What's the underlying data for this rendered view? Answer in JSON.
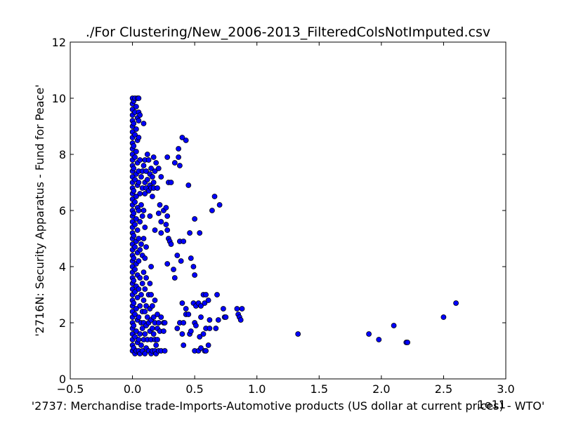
{
  "chart_data": {
    "type": "scatter",
    "title": "./For Clustering/New_2006-2013_FilteredColsNotImputed.csv",
    "xlabel": "'2737: Merchandise trade-Imports-Automotive products (US dollar at current prices) - WTO'",
    "ylabel": "'2716N: Security Apparatus - Fund for Peace'",
    "x_offset_text": "1e11",
    "xlim": [
      -0.5,
      3.0
    ],
    "ylim": [
      0,
      12
    ],
    "x_ticks": [
      -0.5,
      0.0,
      0.5,
      1.0,
      1.5,
      2.0,
      2.5,
      3.0
    ],
    "x_tick_labels": [
      "−0.5",
      "0.0",
      "0.5",
      "1.0",
      "1.5",
      "2.0",
      "2.5",
      "3.0"
    ],
    "y_ticks": [
      0,
      2,
      4,
      6,
      8,
      10,
      12
    ],
    "y_tick_labels": [
      "0",
      "2",
      "4",
      "6",
      "8",
      "10",
      "12"
    ],
    "grid": false,
    "legend": "none",
    "marker_color": "#0000ff",
    "marker_edge_color": "#000000",
    "series": [
      {
        "points": [
          [
            0.0,
            10.0
          ],
          [
            0.0,
            9.8
          ],
          [
            0.0,
            9.6
          ],
          [
            0.0,
            9.4
          ],
          [
            0.0,
            9.2
          ],
          [
            0.0,
            9.0
          ],
          [
            0.0,
            8.8
          ],
          [
            0.0,
            8.6
          ],
          [
            0.0,
            8.4
          ],
          [
            0.0,
            8.2
          ],
          [
            0.0,
            8.0
          ],
          [
            0.0,
            7.8
          ],
          [
            0.0,
            7.6
          ],
          [
            0.0,
            7.4
          ],
          [
            0.0,
            7.2
          ],
          [
            0.0,
            7.0
          ],
          [
            0.0,
            6.8
          ],
          [
            0.0,
            6.6
          ],
          [
            0.0,
            6.4
          ],
          [
            0.0,
            6.2
          ],
          [
            0.0,
            6.0
          ],
          [
            0.0,
            5.8
          ],
          [
            0.0,
            5.6
          ],
          [
            0.0,
            5.4
          ],
          [
            0.0,
            5.2
          ],
          [
            0.0,
            5.0
          ],
          [
            0.0,
            4.8
          ],
          [
            0.0,
            4.6
          ],
          [
            0.0,
            4.4
          ],
          [
            0.0,
            4.2
          ],
          [
            0.0,
            4.0
          ],
          [
            0.0,
            3.8
          ],
          [
            0.0,
            3.6
          ],
          [
            0.0,
            3.4
          ],
          [
            0.0,
            3.2
          ],
          [
            0.0,
            3.0
          ],
          [
            0.0,
            2.8
          ],
          [
            0.0,
            2.6
          ],
          [
            0.0,
            2.4
          ],
          [
            0.0,
            2.2
          ],
          [
            0.0,
            2.0
          ],
          [
            0.0,
            1.8
          ],
          [
            0.0,
            1.6
          ],
          [
            0.0,
            1.4
          ],
          [
            0.0,
            1.2
          ],
          [
            0.0,
            1.0
          ],
          [
            0.01,
            9.9
          ],
          [
            0.01,
            9.1
          ],
          [
            0.01,
            8.3
          ],
          [
            0.01,
            7.5
          ],
          [
            0.01,
            6.7
          ],
          [
            0.01,
            5.9
          ],
          [
            0.01,
            5.1
          ],
          [
            0.01,
            4.3
          ],
          [
            0.01,
            3.5
          ],
          [
            0.01,
            2.7
          ],
          [
            0.01,
            1.9
          ],
          [
            0.01,
            1.1
          ],
          [
            0.02,
            10.0
          ],
          [
            0.02,
            9.5
          ],
          [
            0.02,
            8.7
          ],
          [
            0.02,
            7.9
          ],
          [
            0.02,
            7.1
          ],
          [
            0.02,
            6.3
          ],
          [
            0.02,
            5.5
          ],
          [
            0.02,
            4.7
          ],
          [
            0.02,
            3.9
          ],
          [
            0.02,
            3.1
          ],
          [
            0.02,
            2.3
          ],
          [
            0.02,
            1.5
          ],
          [
            0.02,
            0.9
          ],
          [
            0.03,
            9.7
          ],
          [
            0.03,
            8.9
          ],
          [
            0.03,
            8.1
          ],
          [
            0.03,
            7.3
          ],
          [
            0.03,
            6.5
          ],
          [
            0.03,
            5.7
          ],
          [
            0.03,
            4.9
          ],
          [
            0.03,
            4.1
          ],
          [
            0.03,
            3.3
          ],
          [
            0.03,
            2.5
          ],
          [
            0.03,
            1.7
          ],
          [
            0.03,
            1.0
          ],
          [
            0.04,
            10.0
          ],
          [
            0.04,
            9.3
          ],
          [
            0.04,
            8.5
          ],
          [
            0.04,
            7.7
          ],
          [
            0.04,
            6.9
          ],
          [
            0.04,
            6.1
          ],
          [
            0.04,
            5.3
          ],
          [
            0.04,
            4.5
          ],
          [
            0.04,
            3.7
          ],
          [
            0.04,
            2.9
          ],
          [
            0.04,
            2.1
          ],
          [
            0.04,
            1.3
          ],
          [
            0.05,
            10.0
          ],
          [
            0.05,
            9.5
          ],
          [
            0.05,
            9.2
          ],
          [
            0.05,
            8.6
          ],
          [
            0.05,
            7.4
          ],
          [
            0.05,
            7.0
          ],
          [
            0.05,
            6.0
          ],
          [
            0.05,
            5.0
          ],
          [
            0.05,
            4.2
          ],
          [
            0.05,
            3.2
          ],
          [
            0.05,
            2.2
          ],
          [
            0.05,
            1.4
          ],
          [
            0.05,
            1.0
          ],
          [
            0.06,
            9.4
          ],
          [
            0.06,
            7.8
          ],
          [
            0.06,
            6.6
          ],
          [
            0.06,
            5.6
          ],
          [
            0.06,
            4.6
          ],
          [
            0.06,
            3.6
          ],
          [
            0.06,
            2.6
          ],
          [
            0.06,
            1.6
          ],
          [
            0.06,
            0.9
          ],
          [
            0.07,
            7.2
          ],
          [
            0.07,
            6.2
          ],
          [
            0.07,
            4.8
          ],
          [
            0.07,
            3.0
          ],
          [
            0.07,
            2.0
          ],
          [
            0.07,
            1.2
          ],
          [
            0.08,
            7.4
          ],
          [
            0.08,
            6.8
          ],
          [
            0.08,
            5.8
          ],
          [
            0.08,
            4.4
          ],
          [
            0.08,
            3.4
          ],
          [
            0.08,
            2.4
          ],
          [
            0.08,
            1.8
          ],
          [
            0.08,
            1.0
          ],
          [
            0.09,
            9.1
          ],
          [
            0.09,
            7.6
          ],
          [
            0.09,
            6.0
          ],
          [
            0.09,
            5.0
          ],
          [
            0.09,
            3.8
          ],
          [
            0.09,
            2.8
          ],
          [
            0.09,
            2.0
          ],
          [
            0.09,
            1.4
          ],
          [
            0.1,
            7.8
          ],
          [
            0.1,
            7.0
          ],
          [
            0.1,
            6.6
          ],
          [
            0.1,
            5.4
          ],
          [
            0.1,
            4.3
          ],
          [
            0.1,
            3.2
          ],
          [
            0.1,
            2.4
          ],
          [
            0.1,
            1.6
          ],
          [
            0.1,
            0.9
          ],
          [
            0.11,
            7.4
          ],
          [
            0.11,
            6.8
          ],
          [
            0.11,
            4.7
          ],
          [
            0.11,
            3.6
          ],
          [
            0.11,
            2.6
          ],
          [
            0.11,
            1.9
          ],
          [
            0.11,
            1.1
          ],
          [
            0.12,
            8.0
          ],
          [
            0.12,
            7.1
          ],
          [
            0.12,
            2.2
          ],
          [
            0.12,
            1.4
          ],
          [
            0.13,
            7.8
          ],
          [
            0.13,
            6.7
          ],
          [
            0.13,
            3.0
          ],
          [
            0.13,
            2.0
          ],
          [
            0.13,
            1.0
          ],
          [
            0.14,
            7.3
          ],
          [
            0.14,
            6.9
          ],
          [
            0.14,
            5.8
          ],
          [
            0.14,
            3.4
          ],
          [
            0.14,
            2.5
          ],
          [
            0.14,
            1.7
          ],
          [
            0.15,
            7.5
          ],
          [
            0.15,
            6.8
          ],
          [
            0.15,
            4.0
          ],
          [
            0.15,
            3.0
          ],
          [
            0.15,
            2.1
          ],
          [
            0.15,
            1.4
          ],
          [
            0.15,
            0.9
          ],
          [
            0.16,
            7.2
          ],
          [
            0.16,
            6.5
          ],
          [
            0.16,
            2.6
          ],
          [
            0.16,
            1.8
          ],
          [
            0.16,
            1.0
          ],
          [
            0.17,
            7.9
          ],
          [
            0.17,
            7.0
          ],
          [
            0.17,
            6.8
          ],
          [
            0.17,
            2.2
          ],
          [
            0.17,
            1.6
          ],
          [
            0.18,
            7.4
          ],
          [
            0.18,
            5.3
          ],
          [
            0.18,
            2.8
          ],
          [
            0.18,
            2.0
          ],
          [
            0.18,
            1.4
          ],
          [
            0.18,
            1.0
          ],
          [
            0.19,
            7.7
          ],
          [
            0.19,
            1.2
          ],
          [
            0.19,
            0.9
          ],
          [
            0.2,
            6.8
          ],
          [
            0.2,
            2.3
          ],
          [
            0.2,
            1.8
          ],
          [
            0.2,
            1.4
          ],
          [
            0.21,
            7.5
          ],
          [
            0.21,
            5.9
          ],
          [
            0.21,
            2.0
          ],
          [
            0.21,
            1.0
          ],
          [
            0.22,
            6.2
          ],
          [
            0.22,
            1.7
          ],
          [
            0.23,
            7.2
          ],
          [
            0.23,
            5.6
          ],
          [
            0.23,
            5.2
          ],
          [
            0.23,
            2.2
          ],
          [
            0.23,
            1.0
          ],
          [
            0.25,
            6.0
          ],
          [
            0.25,
            2.0
          ],
          [
            0.25,
            1.7
          ],
          [
            0.26,
            2.0
          ],
          [
            0.26,
            1.0
          ],
          [
            0.27,
            6.1
          ],
          [
            0.27,
            5.5
          ],
          [
            0.28,
            7.9
          ],
          [
            0.28,
            5.8
          ],
          [
            0.28,
            5.3
          ],
          [
            0.28,
            4.1
          ],
          [
            0.29,
            7.0
          ],
          [
            0.29,
            5.0
          ],
          [
            0.3,
            4.9
          ],
          [
            0.31,
            7.0
          ],
          [
            0.31,
            4.8
          ],
          [
            0.33,
            3.9
          ],
          [
            0.34,
            3.6
          ],
          [
            0.34,
            7.7
          ],
          [
            0.36,
            4.4
          ],
          [
            0.36,
            1.8
          ],
          [
            0.37,
            8.2
          ],
          [
            0.37,
            7.9
          ],
          [
            0.38,
            4.9
          ],
          [
            0.38,
            7.6
          ],
          [
            0.38,
            2.0
          ],
          [
            0.39,
            4.2
          ],
          [
            0.4,
            8.6
          ],
          [
            0.4,
            2.7
          ],
          [
            0.4,
            1.6
          ],
          [
            0.41,
            4.9
          ],
          [
            0.41,
            2.0
          ],
          [
            0.41,
            1.2
          ],
          [
            0.43,
            8.5
          ],
          [
            0.43,
            2.5
          ],
          [
            0.43,
            2.3
          ],
          [
            0.45,
            6.9
          ],
          [
            0.45,
            2.3
          ],
          [
            0.46,
            5.2
          ],
          [
            0.46,
            1.6
          ],
          [
            0.47,
            4.3
          ],
          [
            0.47,
            1.7
          ],
          [
            0.49,
            4.0
          ],
          [
            0.49,
            2.7
          ],
          [
            0.5,
            5.7
          ],
          [
            0.5,
            2.0
          ],
          [
            0.5,
            1.0
          ],
          [
            0.5,
            3.7
          ],
          [
            0.51,
            2.6
          ],
          [
            0.51,
            1.9
          ],
          [
            0.53,
            2.7
          ],
          [
            0.53,
            1.0
          ],
          [
            0.54,
            5.2
          ],
          [
            0.54,
            1.5
          ],
          [
            0.55,
            2.6
          ],
          [
            0.55,
            2.2
          ],
          [
            0.55,
            1.1
          ],
          [
            0.57,
            3.0
          ],
          [
            0.57,
            1.6
          ],
          [
            0.58,
            2.7
          ],
          [
            0.58,
            1.0
          ],
          [
            0.59,
            3.0
          ],
          [
            0.59,
            1.8
          ],
          [
            0.59,
            1.0
          ],
          [
            0.61,
            2.8
          ],
          [
            0.61,
            1.2
          ],
          [
            0.62,
            2.1
          ],
          [
            0.62,
            1.8
          ],
          [
            0.64,
            6.0
          ],
          [
            0.66,
            6.5
          ],
          [
            0.67,
            1.8
          ],
          [
            0.68,
            3.0
          ],
          [
            0.69,
            2.1
          ],
          [
            0.7,
            6.2
          ],
          [
            0.73,
            2.5
          ],
          [
            0.74,
            2.2
          ],
          [
            0.75,
            2.2
          ],
          [
            0.84,
            2.5
          ],
          [
            0.85,
            2.3
          ],
          [
            0.86,
            2.2
          ],
          [
            0.87,
            2.1
          ],
          [
            0.88,
            2.5
          ],
          [
            1.33,
            1.6
          ],
          [
            1.9,
            1.6
          ],
          [
            1.98,
            1.4
          ],
          [
            2.1,
            1.9
          ],
          [
            2.2,
            1.3
          ],
          [
            2.21,
            1.3
          ],
          [
            2.5,
            2.2
          ],
          [
            2.6,
            2.7
          ]
        ]
      }
    ]
  }
}
